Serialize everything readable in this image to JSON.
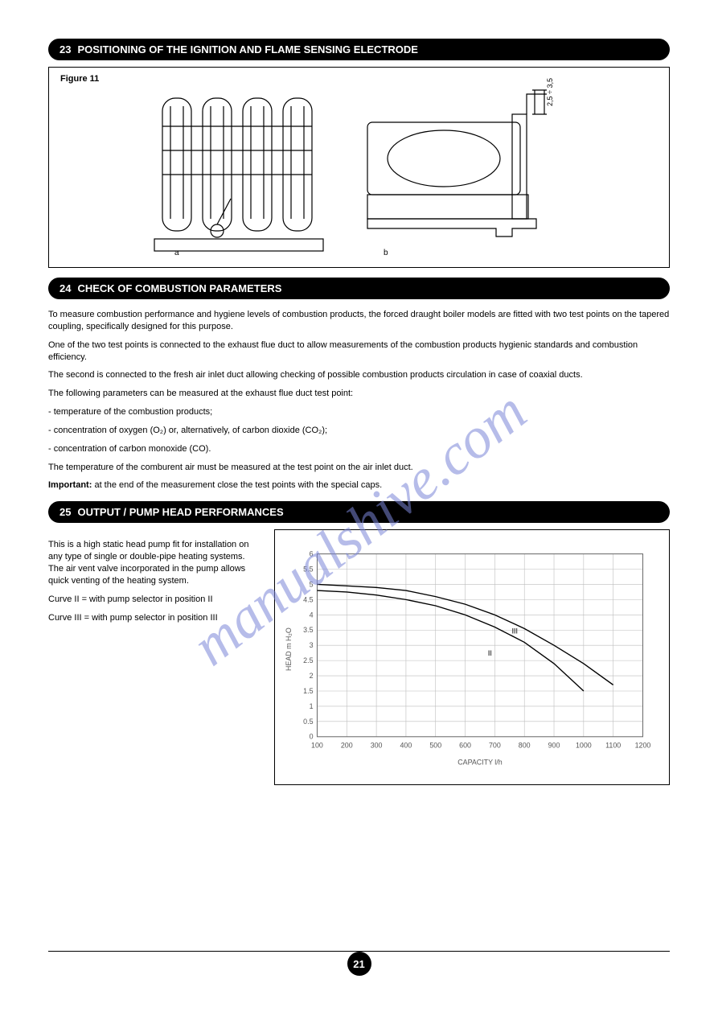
{
  "watermark": "manualshive.com",
  "page_number": "21",
  "sections": {
    "s23": {
      "num": "23",
      "title": "POSITIONING OF THE IGNITION AND FLAME SENSING ELECTRODE"
    },
    "s24": {
      "num": "24",
      "title": "CHECK OF COMBUSTION PARAMETERS"
    },
    "s25": {
      "num": "25",
      "title": "OUTPUT / PUMP HEAD PERFORMANCES"
    }
  },
  "figure11": {
    "label": "Figure 11",
    "dimension_label": "2,5 ÷ 3,5",
    "callouts": {
      "a": "a",
      "b": "b"
    }
  },
  "section24_text": {
    "p1": "To measure combustion performance and hygiene levels of combustion products, the forced draught boiler models are fitted with two test points on the tapered coupling, specifically designed for this purpose.",
    "p2": "One of the two test points is connected to the exhaust flue duct to allow measurements of the combustion products hygienic standards and combustion efficiency.",
    "p3": "The second is connected to the fresh air inlet duct allowing checking of possible combustion products circulation in case of coaxial ducts.",
    "p4": "The following parameters can be measured at the exhaust flue duct test point:",
    "li1": "- temperature of the combustion products;",
    "li2": "- concentration of oxygen (O₂) or, alternatively, of carbon dioxide (CO₂);",
    "li3": "- concentration of carbon monoxide (CO).",
    "p5": "The temperature of the comburent air must be measured at the test point on the air inlet duct.",
    "p6_prefix": "Important: ",
    "p6": "at the end of the measurement close the test points with the special caps."
  },
  "section25_text": {
    "p1": "This is a high static head pump fit for installation on any type of single or double-pipe heating systems. The air vent valve incorporated in the pump allows quick venting of the heating system.",
    "curve_II_label": "Curve II  = with pump selector in position II",
    "curve_III_label": "Curve III = with pump selector in position III"
  },
  "chart": {
    "type": "line",
    "title": "",
    "xlabel": "CAPACITY l/h",
    "ylabel": "HEAD m H₂O",
    "xlim": [
      100,
      1200
    ],
    "ylim": [
      0,
      6
    ],
    "xtick_step": 100,
    "ytick_step": 0.5,
    "xticks": [
      "100",
      "200",
      "300",
      "400",
      "500",
      "600",
      "700",
      "800",
      "900",
      "1000",
      "1100",
      "1200"
    ],
    "yticks": [
      "0",
      "0.5",
      "1",
      "1.5",
      "2",
      "2.5",
      "3",
      "3.5",
      "4",
      "4.5",
      "5",
      "5.5",
      "6"
    ],
    "grid_color": "#bdbdbd",
    "line_color": "#000000",
    "background_color": "#ffffff",
    "series": {
      "II": {
        "label": "II",
        "points": [
          [
            100,
            4.8
          ],
          [
            200,
            4.75
          ],
          [
            300,
            4.65
          ],
          [
            400,
            4.5
          ],
          [
            500,
            4.3
          ],
          [
            600,
            4.0
          ],
          [
            700,
            3.6
          ],
          [
            800,
            3.1
          ],
          [
            900,
            2.4
          ],
          [
            1000,
            1.5
          ]
        ]
      },
      "III": {
        "label": "III",
        "points": [
          [
            100,
            5.0
          ],
          [
            200,
            4.95
          ],
          [
            300,
            4.9
          ],
          [
            400,
            4.8
          ],
          [
            500,
            4.6
          ],
          [
            600,
            4.35
          ],
          [
            700,
            4.0
          ],
          [
            800,
            3.55
          ],
          [
            900,
            3.0
          ],
          [
            1000,
            2.4
          ],
          [
            1100,
            1.7
          ]
        ]
      }
    }
  }
}
